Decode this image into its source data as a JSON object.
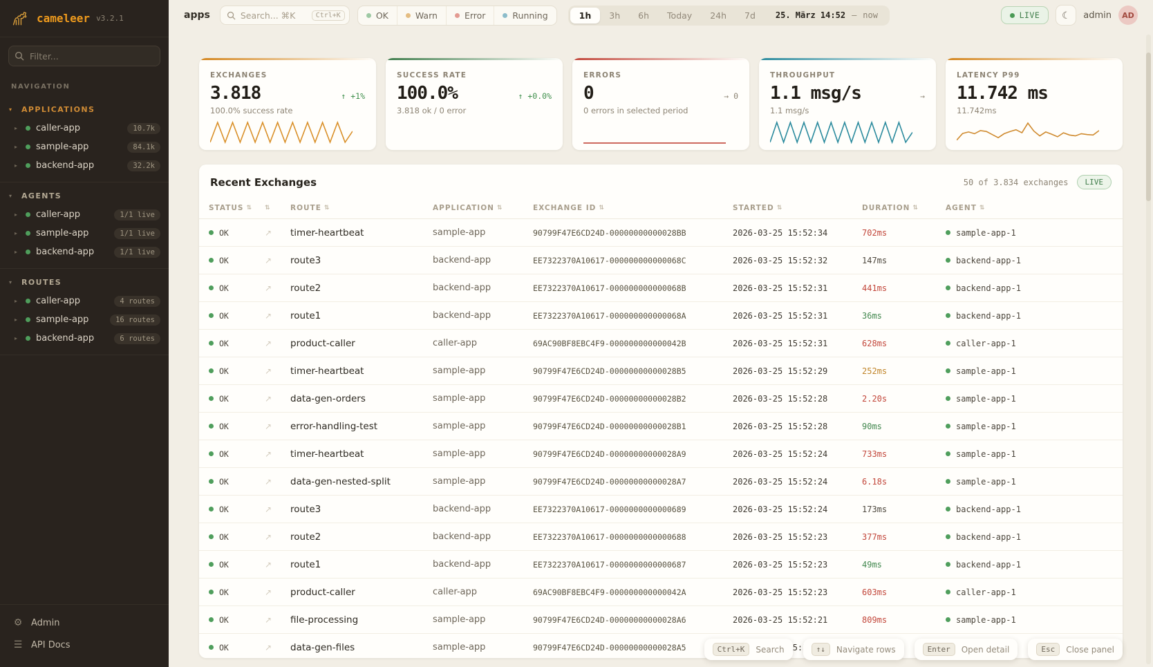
{
  "sidebar": {
    "brand": "cameleer",
    "version": "v3.2.1",
    "filter_placeholder": "Filter...",
    "nav_label": "NAVIGATION",
    "sections": [
      {
        "id": "applications",
        "label": "APPLICATIONS",
        "active": true,
        "items": [
          {
            "name": "caller-app",
            "badge": "10.7k"
          },
          {
            "name": "sample-app",
            "badge": "84.1k"
          },
          {
            "name": "backend-app",
            "badge": "32.2k"
          }
        ]
      },
      {
        "id": "agents",
        "label": "AGENTS",
        "active": false,
        "items": [
          {
            "name": "caller-app",
            "badge": "1/1 live"
          },
          {
            "name": "sample-app",
            "badge": "1/1 live"
          },
          {
            "name": "backend-app",
            "badge": "1/1 live"
          }
        ]
      },
      {
        "id": "routes",
        "label": "ROUTES",
        "active": false,
        "items": [
          {
            "name": "caller-app",
            "badge": "4 routes"
          },
          {
            "name": "sample-app",
            "badge": "16 routes"
          },
          {
            "name": "backend-app",
            "badge": "6 routes"
          }
        ]
      }
    ],
    "footer": [
      {
        "id": "admin",
        "label": "Admin",
        "icon": "gear"
      },
      {
        "id": "api-docs",
        "label": "API Docs",
        "icon": "menu"
      }
    ]
  },
  "topbar": {
    "context_label": "apps",
    "search": {
      "placeholder": "Search... ⌘K",
      "shortcut": "Ctrl+K"
    },
    "status_filters": [
      {
        "label": "OK",
        "color": "#9ec9a4"
      },
      {
        "label": "Warn",
        "color": "#e4bd82"
      },
      {
        "label": "Error",
        "color": "#e39b92"
      },
      {
        "label": "Running",
        "color": "#8cbcca"
      }
    ],
    "time_ranges": [
      {
        "label": "1h",
        "active": true
      },
      {
        "label": "3h",
        "active": false
      },
      {
        "label": "6h",
        "active": false
      },
      {
        "label": "Today",
        "active": false
      },
      {
        "label": "24h",
        "active": false
      },
      {
        "label": "7d",
        "active": false
      }
    ],
    "time_display": {
      "from": "25. März 14:52",
      "separator": "—",
      "to": "now"
    },
    "live_label": "LIVE",
    "theme_icon": "☾",
    "user": {
      "name": "admin",
      "initials": "AD"
    }
  },
  "kpis": [
    {
      "label": "EXCHANGES",
      "value": "3.818",
      "trend": "↑ +1%",
      "trend_style": "green",
      "subtitle": "100.0% success rate",
      "accent": "#d4861f",
      "sparkline": {
        "color": "#d98f28",
        "values": [
          5,
          95,
          5,
          95,
          5,
          95,
          5,
          95,
          5,
          95,
          5,
          95,
          5,
          95,
          5,
          95,
          5,
          95,
          5,
          55
        ]
      }
    },
    {
      "label": "SUCCESS RATE",
      "value": "100.0%",
      "trend": "↑ +0.0%",
      "trend_style": "green",
      "subtitle": "3.818 ok / 0 error",
      "accent": "#3f7d4c",
      "sparkline": {
        "color": "#3f7d4c",
        "values": []
      }
    },
    {
      "label": "ERRORS",
      "value": "0",
      "trend": "→ 0",
      "trend_style": "gray",
      "subtitle": "0 errors in selected period",
      "accent": "#c2463a",
      "sparkline": {
        "color": "#c2463a",
        "values": [
          2,
          2
        ]
      }
    },
    {
      "label": "THROUGHPUT",
      "value": "1.1 msg/s",
      "trend": "→",
      "trend_style": "gray",
      "subtitle": "1.1 msg/s",
      "accent": "#2a8a9d",
      "sparkline": {
        "color": "#2a8a9d",
        "values": [
          5,
          95,
          5,
          95,
          5,
          95,
          5,
          95,
          5,
          95,
          5,
          95,
          5,
          95,
          5,
          95,
          5,
          95,
          5,
          95,
          5,
          50
        ]
      }
    },
    {
      "label": "LATENCY P99",
      "value": "11.742 ms",
      "trend": "",
      "trend_style": "gray",
      "subtitle": "11.742ms",
      "accent": "#d4861f",
      "sparkline": {
        "color": "#cf8a2e",
        "values": [
          15,
          45,
          52,
          44,
          58,
          54,
          40,
          26,
          44,
          54,
          62,
          48,
          92,
          56,
          34,
          52,
          42,
          30,
          48,
          38,
          34,
          44,
          40,
          38,
          58
        ]
      }
    }
  ],
  "table": {
    "title": "Recent Exchanges",
    "count_text": "50 of 3.834 exchanges",
    "live_label": "LIVE",
    "columns": [
      {
        "label": "STATUS"
      },
      {
        "label": ""
      },
      {
        "label": "ROUTE"
      },
      {
        "label": "APPLICATION"
      },
      {
        "label": "EXCHANGE ID"
      },
      {
        "label": "STARTED"
      },
      {
        "label": "DURATION"
      },
      {
        "label": "AGENT"
      }
    ],
    "rows": [
      {
        "status": "OK",
        "route": "timer-heartbeat",
        "application": "sample-app",
        "exchange_id": "90799F47E6CD24D-00000000000028BB",
        "started": "2026-03-25 15:52:34",
        "duration": "702ms",
        "duration_level": "red",
        "agent": "sample-app-1"
      },
      {
        "status": "OK",
        "route": "route3",
        "application": "backend-app",
        "exchange_id": "EE7322370A10617-000000000000068C",
        "started": "2026-03-25 15:52:32",
        "duration": "147ms",
        "duration_level": "plain",
        "agent": "backend-app-1"
      },
      {
        "status": "OK",
        "route": "route2",
        "application": "backend-app",
        "exchange_id": "EE7322370A10617-000000000000068B",
        "started": "2026-03-25 15:52:31",
        "duration": "441ms",
        "duration_level": "red",
        "agent": "backend-app-1"
      },
      {
        "status": "OK",
        "route": "route1",
        "application": "backend-app",
        "exchange_id": "EE7322370A10617-000000000000068A",
        "started": "2026-03-25 15:52:31",
        "duration": "36ms",
        "duration_level": "green",
        "agent": "backend-app-1"
      },
      {
        "status": "OK",
        "route": "product-caller",
        "application": "caller-app",
        "exchange_id": "69AC90BF8EBC4F9-000000000000042B",
        "started": "2026-03-25 15:52:31",
        "duration": "628ms",
        "duration_level": "red",
        "agent": "caller-app-1"
      },
      {
        "status": "OK",
        "route": "timer-heartbeat",
        "application": "sample-app",
        "exchange_id": "90799F47E6CD24D-00000000000028B5",
        "started": "2026-03-25 15:52:29",
        "duration": "252ms",
        "duration_level": "amber",
        "agent": "sample-app-1"
      },
      {
        "status": "OK",
        "route": "data-gen-orders",
        "application": "sample-app",
        "exchange_id": "90799F47E6CD24D-00000000000028B2",
        "started": "2026-03-25 15:52:28",
        "duration": "2.20s",
        "duration_level": "red",
        "agent": "sample-app-1"
      },
      {
        "status": "OK",
        "route": "error-handling-test",
        "application": "sample-app",
        "exchange_id": "90799F47E6CD24D-00000000000028B1",
        "started": "2026-03-25 15:52:28",
        "duration": "90ms",
        "duration_level": "green",
        "agent": "sample-app-1"
      },
      {
        "status": "OK",
        "route": "timer-heartbeat",
        "application": "sample-app",
        "exchange_id": "90799F47E6CD24D-00000000000028A9",
        "started": "2026-03-25 15:52:24",
        "duration": "733ms",
        "duration_level": "red",
        "agent": "sample-app-1"
      },
      {
        "status": "OK",
        "route": "data-gen-nested-split",
        "application": "sample-app",
        "exchange_id": "90799F47E6CD24D-00000000000028A7",
        "started": "2026-03-25 15:52:24",
        "duration": "6.18s",
        "duration_level": "red",
        "agent": "sample-app-1"
      },
      {
        "status": "OK",
        "route": "route3",
        "application": "backend-app",
        "exchange_id": "EE7322370A10617-0000000000000689",
        "started": "2026-03-25 15:52:24",
        "duration": "173ms",
        "duration_level": "plain",
        "agent": "backend-app-1"
      },
      {
        "status": "OK",
        "route": "route2",
        "application": "backend-app",
        "exchange_id": "EE7322370A10617-0000000000000688",
        "started": "2026-03-25 15:52:23",
        "duration": "377ms",
        "duration_level": "red",
        "agent": "backend-app-1"
      },
      {
        "status": "OK",
        "route": "route1",
        "application": "backend-app",
        "exchange_id": "EE7322370A10617-0000000000000687",
        "started": "2026-03-25 15:52:23",
        "duration": "49ms",
        "duration_level": "green",
        "agent": "backend-app-1"
      },
      {
        "status": "OK",
        "route": "product-caller",
        "application": "caller-app",
        "exchange_id": "69AC90BF8EBC4F9-000000000000042A",
        "started": "2026-03-25 15:52:23",
        "duration": "603ms",
        "duration_level": "red",
        "agent": "caller-app-1"
      },
      {
        "status": "OK",
        "route": "file-processing",
        "application": "sample-app",
        "exchange_id": "90799F47E6CD24D-00000000000028A6",
        "started": "2026-03-25 15:52:21",
        "duration": "809ms",
        "duration_level": "red",
        "agent": "sample-app-1"
      },
      {
        "status": "OK",
        "route": "data-gen-files",
        "application": "sample-app",
        "exchange_id": "90799F47E6CD24D-00000000000028A5",
        "started": "2026-03-25 15:52:21",
        "duration": "",
        "duration_level": "plain",
        "agent": "sample-app-1"
      }
    ]
  },
  "hints": [
    {
      "key": "Ctrl+K",
      "label": "Search"
    },
    {
      "key": "↑↓",
      "label": "Navigate rows"
    },
    {
      "key": "Enter",
      "label": "Open detail"
    },
    {
      "key": "Esc",
      "label": "Close panel"
    }
  ]
}
